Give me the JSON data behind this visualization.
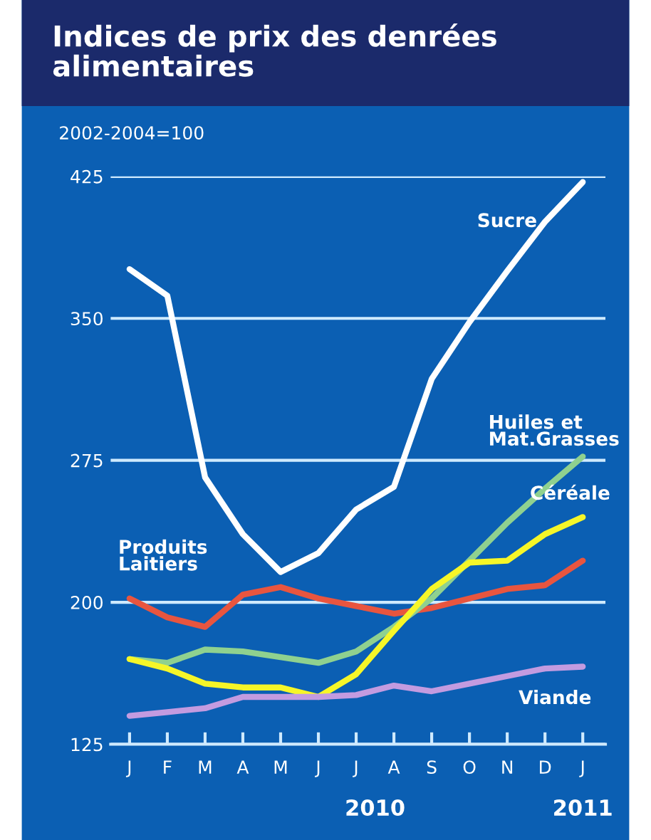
{
  "chart_data": {
    "type": "line",
    "title": "Indices de prix des denrées alimentaires",
    "subtitle": "2002-2004=100",
    "categories": [
      "J",
      "F",
      "M",
      "A",
      "M",
      "J",
      "J",
      "A",
      "S",
      "O",
      "N",
      "D",
      "J"
    ],
    "series": [
      {
        "name": "Sucre",
        "color": "#ffffff",
        "values": [
          376,
          362,
          266,
          236,
          216,
          226,
          249,
          261,
          318,
          348,
          375,
          401,
          422
        ]
      },
      {
        "name": "Produits Laitiers",
        "color": "#e8553f",
        "values": [
          202,
          192,
          187,
          204,
          208,
          202,
          198,
          194,
          197,
          202,
          207,
          209,
          222
        ]
      },
      {
        "name": "Huiles et Mat.Grasses",
        "color": "#8fd18f",
        "values": [
          170,
          168,
          175,
          174,
          171,
          168,
          174,
          187,
          202,
          222,
          242,
          260,
          277
        ]
      },
      {
        "name": "Céréale",
        "color": "#f6f628",
        "values": [
          170,
          165,
          157,
          155,
          155,
          150,
          162,
          185,
          207,
          221,
          222,
          236,
          245
        ]
      },
      {
        "name": "Viande",
        "color": "#c39be0",
        "values": [
          140,
          142,
          144,
          150,
          150,
          150,
          151,
          156,
          153,
          157,
          161,
          165,
          166
        ]
      }
    ],
    "ylim": [
      125,
      425
    ],
    "yticks": [
      125,
      200,
      275,
      350,
      425
    ],
    "grid": "y",
    "legend": false,
    "marker": "none",
    "line_style": "solid",
    "annotations": [
      "2010",
      "2011"
    ]
  }
}
